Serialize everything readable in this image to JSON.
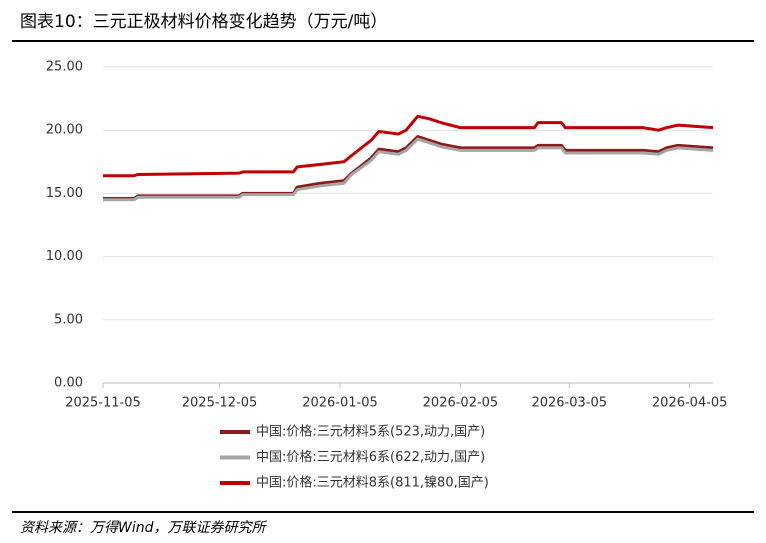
{
  "chart_data": {
    "type": "line",
    "title": "图表10：三元正极材料价格变化趋势（万元/吨）",
    "source": "资料来源：万得Wind，万联证券研究所",
    "x": [
      "2025-11-05",
      "2025-11-13",
      "2025-11-14",
      "2025-12-10",
      "2025-12-11",
      "2025-12-24",
      "2025-12-25",
      "2025-12-31",
      "2026-01-06",
      "2026-01-08",
      "2026-01-13",
      "2026-01-15",
      "2026-01-20",
      "2026-01-22",
      "2026-01-25",
      "2026-01-28",
      "2026-01-31",
      "2026-02-05",
      "2026-02-24",
      "2026-02-25",
      "2026-03-03",
      "2026-03-04",
      "2026-03-24",
      "2026-03-28",
      "2026-03-30",
      "2026-04-02",
      "2026-04-11"
    ],
    "series": [
      {
        "name": "中国:价格:三元材料5系(523,动力,国产)",
        "color": "#8b1a1a",
        "values": [
          14.6,
          14.6,
          14.8,
          14.8,
          15.0,
          15.0,
          15.5,
          15.8,
          16.0,
          16.6,
          17.8,
          18.5,
          18.3,
          18.6,
          19.5,
          19.2,
          18.9,
          18.6,
          18.6,
          18.8,
          18.8,
          18.4,
          18.4,
          18.3,
          18.6,
          18.8,
          18.6
        ]
      },
      {
        "name": "中国:价格:三元材料6系(622,动力,国产)",
        "color": "#a6a6a6",
        "values": [
          14.5,
          14.5,
          14.7,
          14.7,
          14.9,
          14.9,
          15.3,
          15.6,
          15.8,
          16.5,
          17.6,
          18.3,
          18.1,
          18.4,
          19.3,
          19.0,
          18.7,
          18.4,
          18.4,
          18.6,
          18.6,
          18.2,
          18.2,
          18.1,
          18.4,
          18.6,
          18.4
        ]
      },
      {
        "name": "中国:价格:三元材料8系(811,镍80,国产)",
        "color": "#c00000",
        "values": [
          16.4,
          16.4,
          16.5,
          16.6,
          16.7,
          16.7,
          17.1,
          17.3,
          17.5,
          18.0,
          19.2,
          19.9,
          19.7,
          20.0,
          21.1,
          20.9,
          20.6,
          20.2,
          20.2,
          20.6,
          20.6,
          20.2,
          20.2,
          20.0,
          20.2,
          20.4,
          20.2
        ]
      }
    ],
    "xlim": [
      "2025-11-05",
      "2026-04-11"
    ],
    "xticks": [
      "2025-11-05",
      "2025-12-05",
      "2026-01-05",
      "2026-02-05",
      "2026-03-05",
      "2026-04-05"
    ],
    "ylim": [
      0,
      25
    ],
    "yticks": [
      {
        "value": 0,
        "label": "0.00"
      },
      {
        "value": 5,
        "label": "5.00"
      },
      {
        "value": 10,
        "label": "10.00"
      },
      {
        "value": 15,
        "label": "15.00"
      },
      {
        "value": 20,
        "label": "20.00"
      },
      {
        "value": 25,
        "label": "25.00"
      }
    ],
    "grid": true
  }
}
